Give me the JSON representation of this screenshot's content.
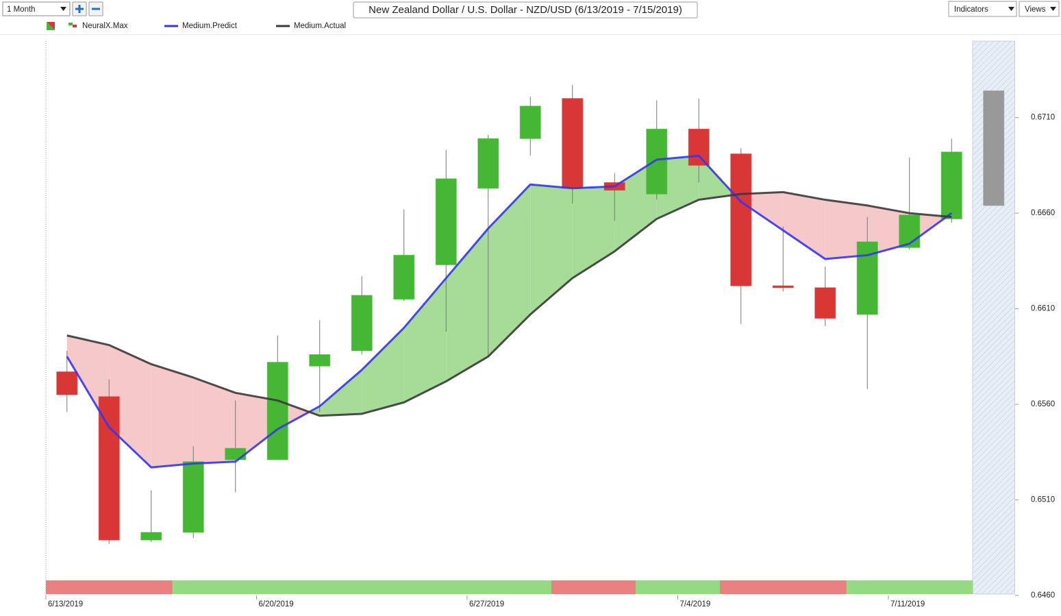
{
  "toolbar": {
    "period": "1 Month",
    "indicators": "Indicators",
    "views": "Views"
  },
  "chart_data": {
    "type": "candlestick",
    "title": "New Zealand Dollar / U.S. Dollar - NZD/USD (6/13/2019 - 7/15/2019)",
    "categories": [
      "6/13/2019",
      null,
      null,
      null,
      null,
      "6/20/2019",
      null,
      null,
      null,
      null,
      "6/27/2019",
      null,
      null,
      null,
      null,
      "7/4/2019",
      null,
      null,
      null,
      null,
      "7/11/2019",
      null,
      null
    ],
    "candles": {
      "name": "NeuralX.Max",
      "up_color": "#45b735",
      "down_color": "#d93636",
      "forecast_color": "#999999",
      "wick_color": "#777777",
      "open": [
        0.6577,
        0.6564,
        0.6489,
        0.6493,
        0.6531,
        0.6531,
        0.658,
        0.6588,
        0.6615,
        0.6633,
        0.6673,
        0.6699,
        0.672,
        0.6676,
        0.667,
        0.6704,
        0.6691,
        0.6622,
        0.6621,
        0.6607,
        0.6642,
        0.6657,
        0.6664
      ],
      "high": [
        0.6588,
        0.6573,
        0.6515,
        0.6538,
        0.6562,
        0.6596,
        0.6604,
        0.6627,
        0.6662,
        0.6693,
        0.6701,
        0.6721,
        0.6727,
        0.6681,
        0.6719,
        0.672,
        0.6694,
        0.6653,
        0.6632,
        0.6658,
        0.6689,
        0.6699,
        0.6724
      ],
      "low": [
        0.6556,
        0.6487,
        0.6488,
        0.649,
        0.6514,
        0.6531,
        0.6556,
        0.6586,
        0.6614,
        0.6598,
        0.6585,
        0.669,
        0.6665,
        0.6656,
        0.6667,
        0.6676,
        0.6602,
        0.6619,
        0.6601,
        0.6568,
        0.6641,
        0.6655,
        0.6664
      ],
      "close": [
        0.6565,
        0.6489,
        0.6493,
        0.653,
        0.6537,
        0.6582,
        0.6586,
        0.6617,
        0.6638,
        0.6678,
        0.6699,
        0.6716,
        0.6673,
        0.6672,
        0.6704,
        0.6685,
        0.6622,
        0.6621,
        0.6605,
        0.6645,
        0.6659,
        0.6692,
        0.6724
      ]
    },
    "series": [
      {
        "name": "Medium.Predict",
        "color": "#3535ee",
        "values": [
          0.6585,
          0.6548,
          0.6527,
          0.6529,
          0.653,
          0.6547,
          0.6559,
          0.6578,
          0.66,
          0.6626,
          0.6652,
          0.6675,
          0.6673,
          0.6674,
          0.6688,
          0.669,
          0.6666,
          0.6651,
          0.6636,
          0.6638,
          0.6644,
          0.666,
          null
        ]
      },
      {
        "name": "Medium.Actual",
        "color": "#3a3a3a",
        "values": [
          0.6596,
          0.6591,
          0.6581,
          0.6574,
          0.6566,
          0.6562,
          0.6554,
          0.6555,
          0.6561,
          0.6572,
          0.6585,
          0.6607,
          0.6626,
          0.664,
          0.6657,
          0.6667,
          0.667,
          0.6671,
          0.6667,
          0.6664,
          0.666,
          0.6658,
          null
        ]
      }
    ],
    "fill_colors": {
      "above": "#a6dc98",
      "below": "#f5c8c9"
    },
    "signal_colors": [
      "#e88080",
      "#e88080",
      "#e88080",
      "#95d982",
      "#95d982",
      "#95d982",
      "#95d982",
      "#95d982",
      "#95d982",
      "#95d982",
      "#95d982",
      "#95d982",
      "#e88080",
      "#e88080",
      "#95d982",
      "#95d982",
      "#e88080",
      "#e88080",
      "#e88080",
      "#95d982",
      "#95d982",
      "#95d982"
    ],
    "ylim": [
      0.646,
      0.675
    ],
    "yticks": [
      {
        "value": 0.646,
        "label": "0.6460"
      },
      {
        "value": 0.651,
        "label": "0.6510"
      },
      {
        "value": 0.656,
        "label": "0.6560"
      },
      {
        "value": 0.661,
        "label": "0.6610"
      },
      {
        "value": 0.666,
        "label": "0.6660"
      },
      {
        "value": 0.671,
        "label": "0.6710"
      }
    ],
    "y_axis_side": "right"
  }
}
